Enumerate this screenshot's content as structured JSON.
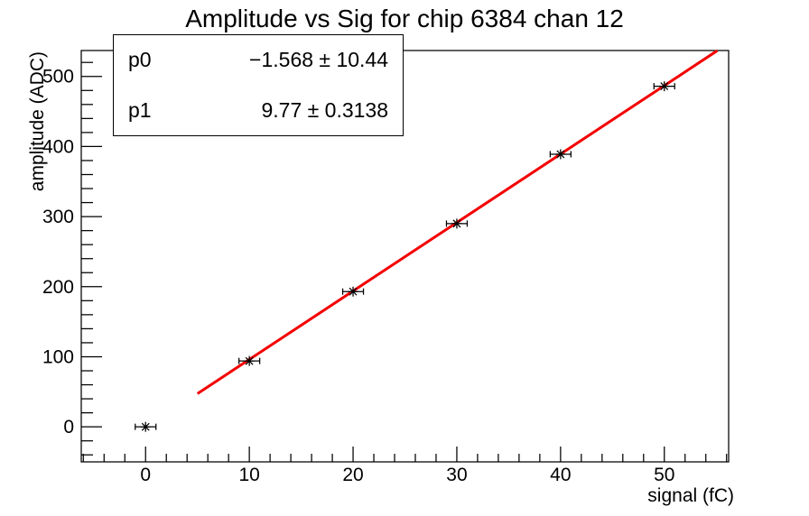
{
  "title": "Amplitude vs Sig for chip 6384 chan 12",
  "stats": {
    "rows": [
      {
        "name": "p0",
        "value": "−1.568 ± 10.44"
      },
      {
        "name": "p1",
        "value": "9.77 ± 0.3138"
      }
    ]
  },
  "chart_data": {
    "type": "scatter",
    "title": "Amplitude vs Sig for chip 6384 chan 12",
    "xlabel": "signal (fC)",
    "ylabel": "amplitude (ADC)",
    "x": [
      0,
      10,
      20,
      30,
      40,
      50
    ],
    "y": [
      0,
      94,
      193,
      290,
      389,
      486
    ],
    "xerr": 1,
    "xlim": [
      -6.2,
      56.2
    ],
    "ylim": [
      -50,
      537
    ],
    "xticks": [
      0,
      10,
      20,
      30,
      40,
      50
    ],
    "yticks": [
      0,
      100,
      200,
      300,
      400,
      500
    ],
    "minor_x_step": 2,
    "minor_y_step": 20,
    "grid": false,
    "legend": "none",
    "marker": "asterisk-with-x-error-bars",
    "fit": {
      "label_p0": "p0",
      "label_p1": "p1",
      "p0": -1.568,
      "p0_err": 10.44,
      "p1": 9.77,
      "p1_err": 0.3138,
      "draw_range": [
        5,
        55.1
      ],
      "color": "#f40000"
    },
    "colors": {
      "points": "#000000",
      "frame": "#000000",
      "background": "#ffffff"
    }
  }
}
